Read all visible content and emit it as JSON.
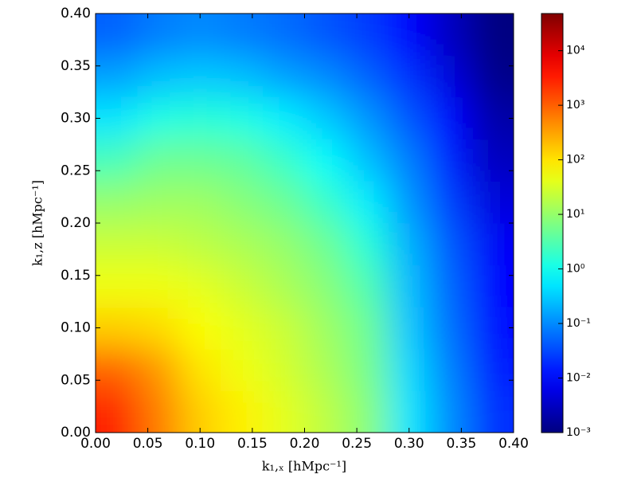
{
  "chart_data": {
    "type": "heatmap",
    "x_label": "k₁,ₓ  [hMpc⁻¹]",
    "y_label": "k₁,z  [hMpc⁻¹]",
    "x": [
      0.02,
      0.06,
      0.1,
      0.14,
      0.18,
      0.22,
      0.26,
      0.3,
      0.34,
      0.38
    ],
    "y": [
      0.02,
      0.06,
      0.1,
      0.14,
      0.18,
      0.22,
      0.26,
      0.3,
      0.34,
      0.38
    ],
    "z": [
      [
        3000,
        600,
        150,
        80,
        40,
        20,
        8,
        0.5,
        0.1,
        0.02
      ],
      [
        1000,
        400,
        100,
        50,
        30,
        15,
        6,
        0.4,
        0.08,
        0.015
      ],
      [
        150,
        120,
        60,
        40,
        25,
        12,
        5,
        0.3,
        0.06,
        0.012
      ],
      [
        50,
        50,
        40,
        25,
        15,
        8,
        3,
        0.25,
        0.05,
        0.01
      ],
      [
        25,
        25,
        20,
        15,
        10,
        5,
        1.5,
        0.2,
        0.04,
        0.008
      ],
      [
        10,
        12,
        12,
        8,
        5,
        2,
        0.6,
        0.12,
        0.025,
        0.005
      ],
      [
        2.5,
        5,
        5,
        4,
        2,
        0.8,
        0.25,
        0.08,
        0.015,
        0.003
      ],
      [
        0.5,
        1.2,
        1.5,
        1.2,
        0.6,
        0.3,
        0.12,
        0.04,
        0.01,
        0.002
      ],
      [
        0.15,
        0.25,
        0.3,
        0.25,
        0.15,
        0.1,
        0.05,
        0.02,
        0.005,
        0.0012
      ],
      [
        0.05,
        0.08,
        0.1,
        0.08,
        0.06,
        0.04,
        0.025,
        0.01,
        0.003,
        0.001
      ]
    ],
    "xlim": [
      0,
      0.4
    ],
    "ylim": [
      0,
      0.4
    ],
    "xticks": [
      {
        "value": 0,
        "label": "0.00"
      },
      0.05,
      {
        "value": 0.1,
        "label": "0.10"
      },
      0.15,
      {
        "value": 0.2,
        "label": "0.20"
      },
      0.25,
      {
        "value": 0.3,
        "label": "0.30"
      },
      0.35,
      {
        "value": 0.4,
        "label": "0.40"
      }
    ],
    "yticks": [
      {
        "value": 0,
        "label": "0.00"
      },
      0.05,
      {
        "value": 0.1,
        "label": "0.10"
      },
      0.15,
      {
        "value": 0.2,
        "label": "0.20"
      },
      0.25,
      {
        "value": 0.3,
        "label": "0.30"
      },
      0.35,
      {
        "value": 0.4,
        "label": "0.40"
      }
    ],
    "colormap": "jet",
    "zscale": "log",
    "zlim": [
      0.001,
      48000
    ],
    "zticks": [
      {
        "value": 0.001,
        "label": "10⁻³"
      },
      {
        "value": 0.01,
        "label": "10⁻²"
      },
      {
        "value": 0.1,
        "label": "10⁻¹"
      },
      {
        "value": 1,
        "label": "10⁰"
      },
      {
        "value": 10,
        "label": "10¹"
      },
      {
        "value": 100,
        "label": "10²"
      },
      {
        "value": 1000,
        "label": "10³"
      },
      {
        "value": 10000,
        "label": "10⁴"
      }
    ]
  }
}
